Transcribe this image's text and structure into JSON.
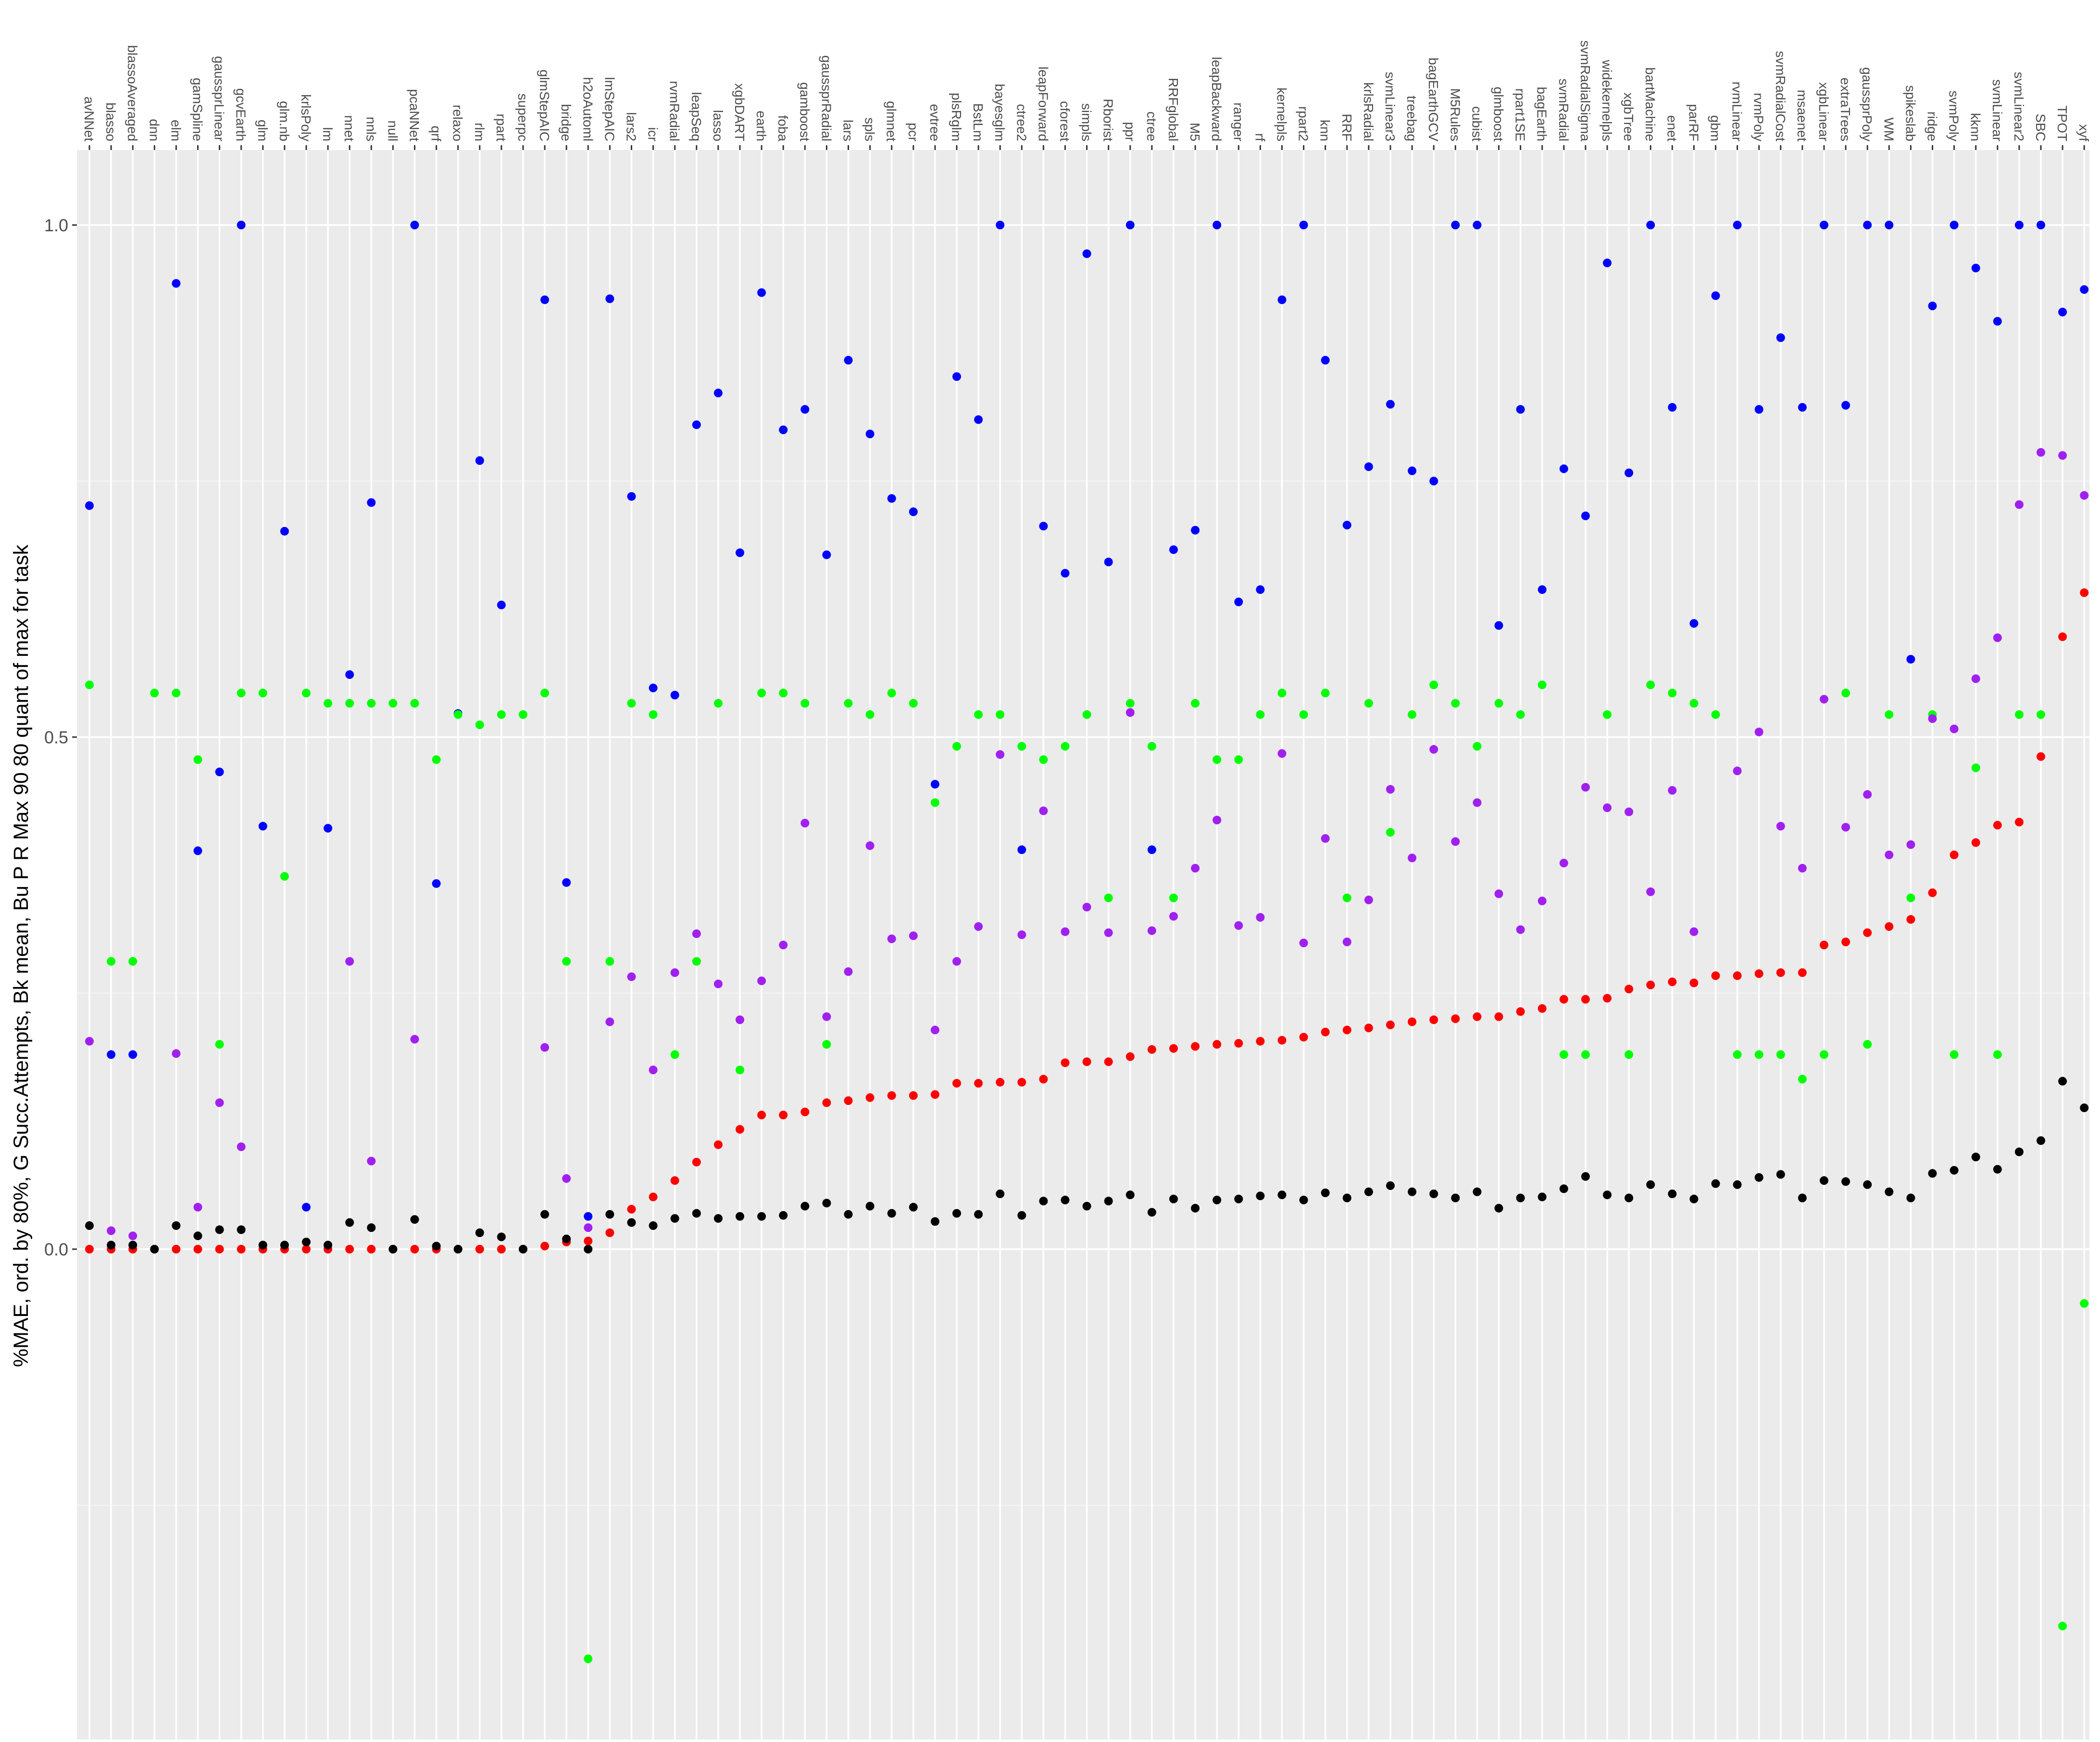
{
  "chart_data": {
    "type": "scatter",
    "title": "",
    "xlabel": "",
    "ylabel": "%MAE, ord. by 80%, G Succ.Attempts, Bk mean, Bu P R Max 90 80 quant of max for task",
    "x_axis_position": "top",
    "x_tick_orientation": "vertical",
    "ylim": [
      -0.47,
      1.08
    ],
    "y_ticks": [
      0.0,
      0.5,
      1.0
    ],
    "y_tick_labels": [
      "0.0",
      "0.5",
      "1.0"
    ],
    "grid": true,
    "legend": "none",
    "categories": [
      "avNNet",
      "blasso",
      "blassoAveraged",
      "dnn",
      "elm",
      "gamSpline",
      "gaussprLinear",
      "gcvEarth",
      "glm",
      "glm.nb",
      "krlsPoly",
      "lm",
      "nnet",
      "nnls",
      "null",
      "pcaNNet",
      "qrf",
      "relaxo",
      "rlm",
      "rpart",
      "superpc",
      "glmStepAIC",
      "bridge",
      "h2oAutoml",
      "lmStepAIC",
      "lars2",
      "icr",
      "rvmRadial",
      "leapSeq",
      "lasso",
      "xgbDART",
      "earth",
      "foba",
      "gamboost",
      "gaussprRadial",
      "lars",
      "spls",
      "glmnet",
      "pcr",
      "evtree",
      "plsRglm",
      "BstLm",
      "bayesglm",
      "ctree2",
      "leapForward",
      "cforest",
      "simpls",
      "Rborist",
      "ppr",
      "ctree",
      "RRFglobal",
      "M5",
      "leapBackward",
      "ranger",
      "rf",
      "kernelpls",
      "rpart2",
      "knn",
      "RRF",
      "krlsRadial",
      "svmLinear3",
      "treebag",
      "bagEarthGCV",
      "M5Rules",
      "cubist",
      "glmboost",
      "rpart1SE",
      "bagEarth",
      "svmRadial",
      "svmRadialSigma",
      "widekernelpls",
      "xgbTree",
      "bartMachine",
      "enet",
      "parRF",
      "gbm",
      "rvmLinear",
      "rvmPoly",
      "svmRadialCost",
      "msaenet",
      "xgbLinear",
      "extraTrees",
      "gaussprPoly",
      "WM",
      "spikeslab",
      "ridge",
      "svmPoly",
      "kknn",
      "svmLinear",
      "svmLinear2",
      "SBC",
      "TPOT",
      "xyf"
    ],
    "series": [
      {
        "color": "#0000ff",
        "values": [
          0.726,
          0.19,
          0.19,
          null,
          0.943,
          0.389,
          0.466,
          1.0,
          0.413,
          0.701,
          0.041,
          0.411,
          0.561,
          0.729,
          null,
          1.0,
          0.357,
          0.523,
          0.77,
          0.629,
          null,
          0.927,
          0.358,
          0.032,
          0.928,
          0.735,
          0.548,
          0.541,
          0.805,
          0.836,
          0.68,
          0.934,
          0.8,
          0.82,
          0.678,
          0.868,
          0.796,
          0.733,
          0.72,
          0.454,
          0.852,
          0.81,
          1.0,
          0.39,
          0.706,
          0.66,
          0.972,
          0.671,
          1.0,
          0.39,
          0.683,
          0.702,
          1.0,
          0.632,
          0.644,
          0.927,
          1.0,
          0.868,
          0.707,
          0.764,
          0.825,
          0.76,
          0.75,
          1.0,
          1.0,
          0.609,
          0.82,
          0.644,
          0.762,
          0.716,
          0.963,
          0.758,
          1.0,
          0.822,
          0.611,
          0.931,
          1.0,
          0.82,
          0.89,
          0.822,
          1.0,
          0.824,
          1.0,
          1.0,
          0.576,
          0.921,
          1.0,
          0.958,
          0.906,
          1.0,
          1.0,
          0.915,
          0.937
        ]
      },
      {
        "color": "#00ff00",
        "values": [
          0.551,
          0.281,
          0.281,
          0.543,
          0.543,
          0.478,
          0.2,
          0.543,
          0.543,
          0.364,
          0.543,
          0.533,
          0.533,
          0.533,
          0.533,
          0.533,
          0.478,
          0.522,
          0.512,
          0.522,
          0.522,
          0.543,
          0.281,
          -0.4,
          0.281,
          0.533,
          0.522,
          0.19,
          0.281,
          0.533,
          0.175,
          0.543,
          0.543,
          0.533,
          0.2,
          0.533,
          0.522,
          0.543,
          0.533,
          0.436,
          0.491,
          0.522,
          0.522,
          0.491,
          0.478,
          0.491,
          0.522,
          0.343,
          0.533,
          0.491,
          0.343,
          0.533,
          0.478,
          0.478,
          0.522,
          0.543,
          0.522,
          0.543,
          0.343,
          0.533,
          0.407,
          0.522,
          0.551,
          0.533,
          0.491,
          0.533,
          0.522,
          0.551,
          0.19,
          0.19,
          0.522,
          0.19,
          0.551,
          0.543,
          0.533,
          0.522,
          0.19,
          0.19,
          0.19,
          0.166,
          0.19,
          0.543,
          0.2,
          0.522,
          0.343,
          0.522,
          0.19,
          0.47,
          0.19,
          0.522,
          0.522,
          -0.368,
          -0.053
        ]
      },
      {
        "color": "#a020f0",
        "values": [
          0.203,
          0.018,
          0.013,
          null,
          0.191,
          0.041,
          0.143,
          0.1,
          null,
          null,
          null,
          null,
          0.281,
          0.086,
          null,
          0.205,
          null,
          null,
          null,
          null,
          null,
          0.197,
          0.069,
          0.021,
          0.222,
          0.266,
          0.175,
          0.27,
          0.308,
          0.259,
          0.224,
          0.262,
          0.297,
          0.416,
          0.227,
          0.271,
          0.394,
          0.303,
          0.306,
          0.214,
          0.281,
          0.315,
          0.483,
          0.307,
          0.428,
          0.31,
          0.334,
          0.309,
          0.524,
          0.311,
          0.325,
          0.372,
          0.419,
          0.316,
          0.324,
          0.484,
          0.299,
          0.401,
          0.3,
          0.341,
          0.449,
          0.382,
          0.488,
          0.398,
          0.436,
          0.347,
          0.312,
          0.34,
          0.377,
          0.451,
          0.431,
          0.427,
          0.349,
          0.448,
          0.31,
          null,
          0.467,
          0.505,
          0.413,
          0.372,
          0.537,
          0.412,
          0.444,
          0.385,
          0.395,
          0.518,
          0.508,
          0.557,
          0.597,
          0.727,
          0.778,
          0.775,
          0.736
        ]
      },
      {
        "color": "#ff0000",
        "values": [
          0.0,
          0.0,
          0.0,
          0.0,
          0.0,
          0.0,
          0.0,
          0.0,
          0.0,
          0.0,
          0.0,
          0.0,
          0.0,
          0.0,
          0.0,
          0.0,
          0.0,
          0.0,
          0.0,
          0.0,
          0.0,
          0.003,
          0.007,
          0.008,
          0.016,
          0.039,
          0.051,
          0.067,
          0.085,
          0.102,
          0.117,
          0.131,
          0.131,
          0.134,
          0.143,
          0.145,
          0.148,
          0.15,
          0.15,
          0.151,
          0.162,
          0.162,
          0.163,
          0.163,
          0.166,
          0.182,
          0.183,
          0.183,
          0.188,
          0.195,
          0.196,
          0.198,
          0.2,
          0.201,
          0.203,
          0.204,
          0.207,
          0.212,
          0.214,
          0.216,
          0.219,
          0.222,
          0.224,
          0.225,
          0.227,
          0.227,
          0.232,
          0.235,
          0.244,
          0.244,
          0.245,
          0.254,
          0.258,
          0.261,
          0.26,
          0.267,
          0.267,
          0.269,
          0.27,
          0.27,
          0.297,
          0.3,
          0.309,
          0.315,
          0.322,
          0.348,
          0.385,
          0.397,
          0.414,
          0.417,
          0.481,
          0.598,
          0.641
        ]
      },
      {
        "color": "#000000",
        "values": [
          0.023,
          0.004,
          0.004,
          0.0,
          0.023,
          0.013,
          0.019,
          0.019,
          0.004,
          0.004,
          0.007,
          0.004,
          0.026,
          0.021,
          0.0,
          0.029,
          0.003,
          0.0,
          0.016,
          0.012,
          0.0,
          0.034,
          0.01,
          0.0,
          0.034,
          0.026,
          0.023,
          0.03,
          0.035,
          0.03,
          0.032,
          0.032,
          0.033,
          0.042,
          0.045,
          0.034,
          0.042,
          0.035,
          0.041,
          0.027,
          0.035,
          0.034,
          0.054,
          0.033,
          0.047,
          0.048,
          0.042,
          0.047,
          0.053,
          0.036,
          0.049,
          0.04,
          0.048,
          0.049,
          0.052,
          0.053,
          0.048,
          0.055,
          0.05,
          0.056,
          0.062,
          0.056,
          0.054,
          0.05,
          0.056,
          0.04,
          0.05,
          0.051,
          0.059,
          0.071,
          0.053,
          0.05,
          0.063,
          0.054,
          0.049,
          0.064,
          0.063,
          0.07,
          0.073,
          0.05,
          0.067,
          0.066,
          0.063,
          0.056,
          0.05,
          0.074,
          0.077,
          0.09,
          0.078,
          0.095,
          0.106,
          0.164,
          0.138
        ]
      }
    ]
  }
}
